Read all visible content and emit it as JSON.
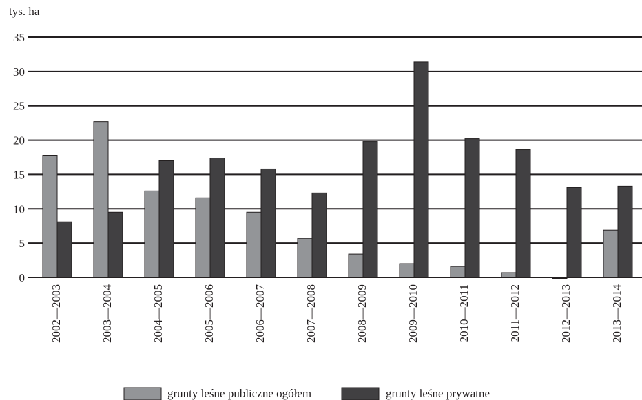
{
  "chart_data": {
    "type": "bar",
    "ylabel": "tys. ha",
    "ylim": [
      0,
      35
    ],
    "yticks": [
      0,
      5,
      10,
      15,
      20,
      25,
      30,
      35
    ],
    "grid": true,
    "legend_position": "bottom",
    "categories": [
      "2002—2003",
      "2003—2004",
      "2004—2005",
      "2005—2006",
      "2006—2007",
      "2007—2008",
      "2008—2009",
      "2009—2010",
      "2010—2011",
      "2011—2012",
      "2012—2013",
      "2013—2014"
    ],
    "series": [
      {
        "name": "grunty leśne publiczne ogółem",
        "color": "#939598",
        "values": [
          17.8,
          22.7,
          12.6,
          11.6,
          9.5,
          5.7,
          3.4,
          2.0,
          1.6,
          0.7,
          -0.1,
          6.9
        ]
      },
      {
        "name": "grunty leśne prywatne",
        "color": "#414042",
        "values": [
          8.1,
          9.5,
          17.0,
          17.4,
          15.8,
          12.3,
          19.8,
          31.4,
          20.2,
          18.6,
          13.1,
          13.3
        ]
      }
    ]
  }
}
